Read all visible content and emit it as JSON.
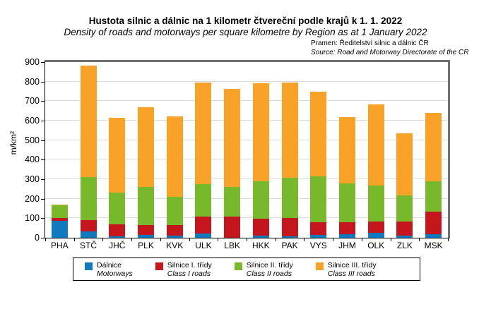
{
  "chart_data": {
    "type": "bar",
    "stacked": true,
    "title": "Hustota silnic a dálnic na 1 kilometr čtvereční podle krajů k 1. 1. 2022",
    "subtitle": "Density of roads and motorways per square kilometre by Region as at 1 January 2022",
    "source_cz": "Pramen: Ředitelství silnic a dálnic ČR",
    "source_en": "Source: Road and Motorway Directorate of the CR",
    "ylabel": "m/km²",
    "ylim": [
      0,
      900
    ],
    "ytick_step": 100,
    "grid": true,
    "legend_position": "bottom",
    "categories": [
      "PHA",
      "STČ",
      "JHČ",
      "PLK",
      "KVK",
      "ULK",
      "LBK",
      "HKK",
      "PAK",
      "VYS",
      "JHM",
      "OLK",
      "ZLK",
      "MSK"
    ],
    "series": [
      {
        "name_cz": "Dálnice",
        "name_en": "Motorways",
        "color": "#0F7AC0",
        "values": [
          87,
          31,
          8,
          14,
          11,
          21,
          0,
          10,
          7,
          15,
          18,
          25,
          11,
          19
        ]
      },
      {
        "name_cz": "Silnice I. třídy",
        "name_en": "Class I roads",
        "color": "#C4161C",
        "values": [
          15,
          61,
          61,
          50,
          54,
          88,
          110,
          87,
          96,
          65,
          61,
          60,
          74,
          115
        ]
      },
      {
        "name_cz": "Silnice II. třídy",
        "name_en": "Class II roads",
        "color": "#77B92B",
        "values": [
          66,
          219,
          162,
          197,
          144,
          165,
          151,
          191,
          204,
          235,
          201,
          183,
          132,
          157
        ]
      },
      {
        "name_cz": "Silnice III. třídy",
        "name_en": "Class III roads",
        "color": "#F9A228",
        "values": [
          3,
          570,
          382,
          409,
          413,
          521,
          503,
          502,
          490,
          432,
          339,
          417,
          317,
          349
        ]
      }
    ]
  }
}
